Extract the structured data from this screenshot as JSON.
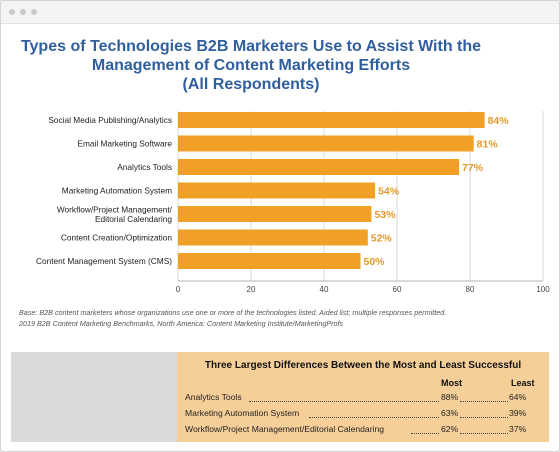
{
  "window": {
    "dots": [
      "dot",
      "dot",
      "dot"
    ]
  },
  "chart_data": {
    "type": "bar",
    "orientation": "horizontal",
    "title_lines": [
      "Types of Technologies B2B Marketers Use to Assist With the",
      "Management of Content Marketing Efforts",
      "(All Respondents)"
    ],
    "categories": [
      [
        "Social Media Publishing/Analytics"
      ],
      [
        "Email Marketing Software"
      ],
      [
        "Analytics Tools"
      ],
      [
        "Marketing Automation System"
      ],
      [
        "Workflow/Project Management/",
        "Editorial Calendaring"
      ],
      [
        "Content Creation/Optimization"
      ],
      [
        "Content Management System (CMS)"
      ]
    ],
    "values": [
      84,
      81,
      77,
      54,
      53,
      52,
      50
    ],
    "value_labels": [
      "84%",
      "81%",
      "77%",
      "54%",
      "53%",
      "52%",
      "50%"
    ],
    "xlim": [
      0,
      100
    ],
    "xticks": [
      0,
      20,
      40,
      60,
      80,
      100
    ],
    "grid": true,
    "bar_color": "#f0a024",
    "label_color": "#e39a2d"
  },
  "base_note": [
    "Base: B2B content marketers whose organizations use one or more of the technologies listed. Aided list; multiple responses permitted.",
    "2019 B2B Content Marketing Benchmarks, North America: Content Marketing Institute/MarketingProfs"
  ],
  "differences_table": {
    "title": "Three Largest Differences Between the Most and Least Successful",
    "col_most": "Most",
    "col_least": "Least",
    "rows": [
      {
        "label": "Analytics Tools",
        "most": "88%",
        "least": "64%"
      },
      {
        "label": "Marketing Automation System",
        "most": "63%",
        "least": "39%"
      },
      {
        "label": "Workflow/Project Management/Editorial Calendaring",
        "most": "62%",
        "least": "37%"
      }
    ],
    "colors": {
      "panel_bg": "#f6cf98",
      "left_bg": "#d9d9d9"
    }
  }
}
